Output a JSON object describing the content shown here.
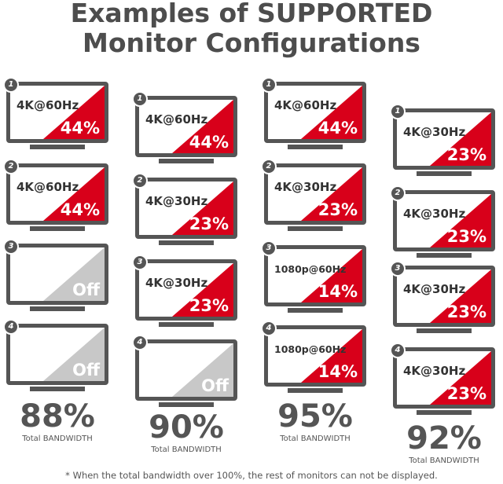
{
  "title": {
    "line1": "Examples of SUPPORTED",
    "line2": "Monitor Configurations"
  },
  "colors": {
    "active": "#d8001a",
    "off": "#c8c8c8",
    "frame": "#555555"
  },
  "columns": [
    {
      "monitors": [
        {
          "num": "1",
          "res": "4K@60Hz",
          "pct": "44%",
          "state": "on"
        },
        {
          "num": "2",
          "res": "4K@60Hz",
          "pct": "44%",
          "state": "on"
        },
        {
          "num": "3",
          "res": "",
          "pct": "Off",
          "state": "off"
        },
        {
          "num": "4",
          "res": "",
          "pct": "Off",
          "state": "off"
        }
      ],
      "total": "88%",
      "total_label": "Total BANDWIDTH"
    },
    {
      "monitors": [
        {
          "num": "1",
          "res": "4K@60Hz",
          "pct": "44%",
          "state": "on"
        },
        {
          "num": "2",
          "res": "4K@30Hz",
          "pct": "23%",
          "state": "on"
        },
        {
          "num": "3",
          "res": "4K@30Hz",
          "pct": "23%",
          "state": "on"
        },
        {
          "num": "4",
          "res": "",
          "pct": "Off",
          "state": "off"
        }
      ],
      "total": "90%",
      "total_label": "Total BANDWIDTH"
    },
    {
      "monitors": [
        {
          "num": "1",
          "res": "4K@60Hz",
          "pct": "44%",
          "state": "on"
        },
        {
          "num": "2",
          "res": "4K@30Hz",
          "pct": "23%",
          "state": "on"
        },
        {
          "num": "3",
          "res": "1080p@60Hz",
          "pct": "14%",
          "state": "on"
        },
        {
          "num": "4",
          "res": "1080p@60Hz",
          "pct": "14%",
          "state": "on"
        }
      ],
      "total": "95%",
      "total_label": "Total BANDWIDTH"
    },
    {
      "monitors": [
        {
          "num": "1",
          "res": "4K@30Hz",
          "pct": "23%",
          "state": "on"
        },
        {
          "num": "2",
          "res": "4K@30Hz",
          "pct": "23%",
          "state": "on"
        },
        {
          "num": "3",
          "res": "4K@30Hz",
          "pct": "23%",
          "state": "on"
        },
        {
          "num": "4",
          "res": "4K@30Hz",
          "pct": "23%",
          "state": "on"
        }
      ],
      "total": "92%",
      "total_label": "Total BANDWIDTH"
    }
  ],
  "footnote": "* When the total bandwidth over 100%, the rest of monitors can not be displayed."
}
